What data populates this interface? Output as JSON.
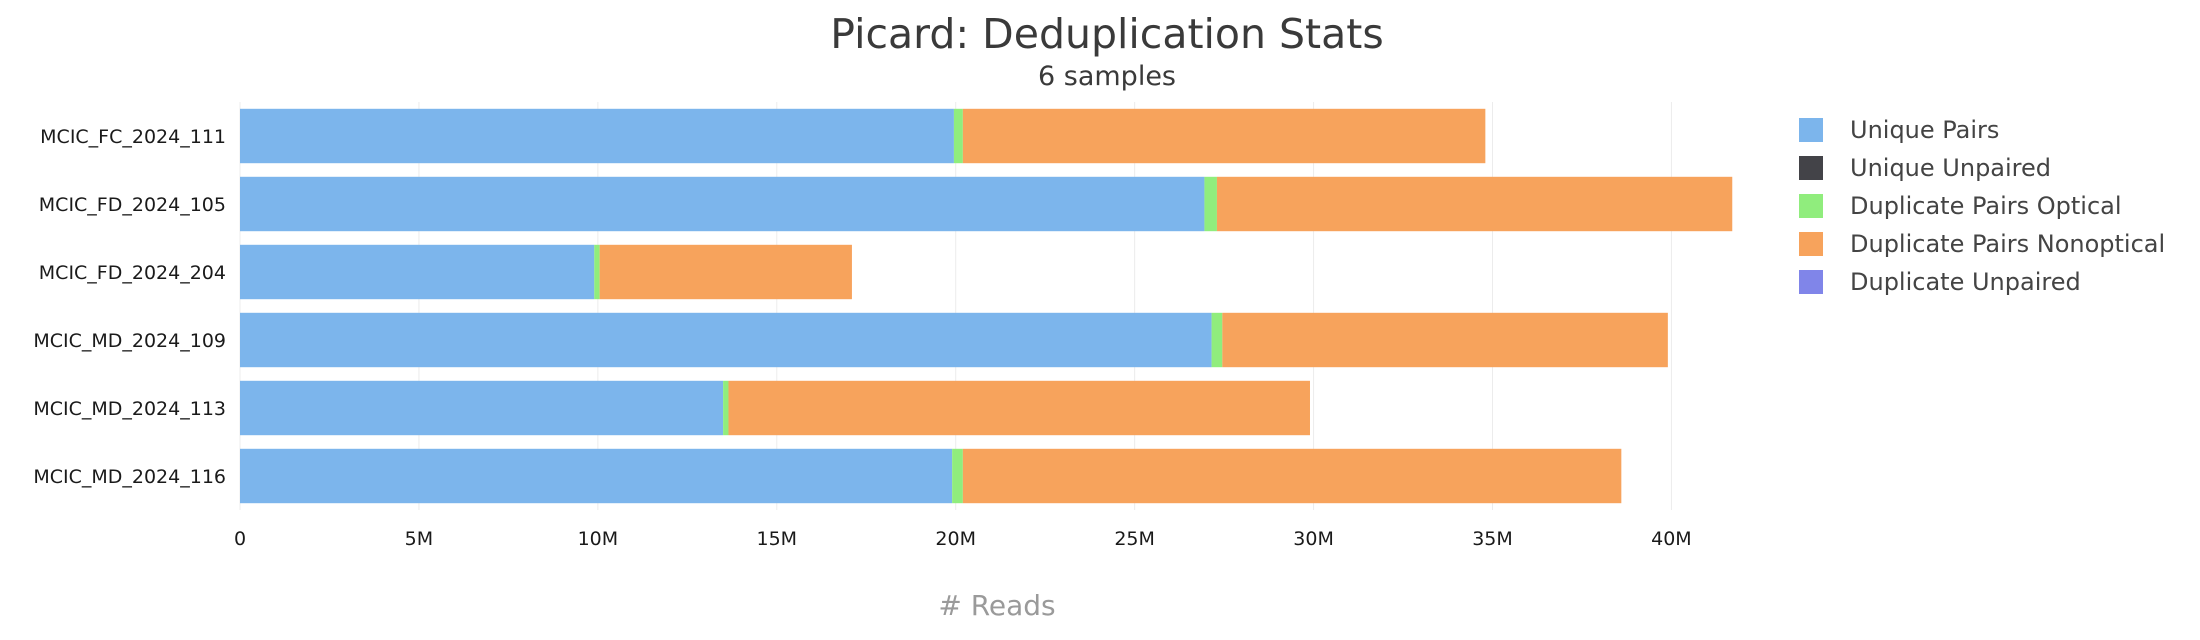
{
  "chart_data": {
    "type": "bar",
    "orientation": "horizontal",
    "stacked": true,
    "title": "Picard: Deduplication Stats",
    "subtitle": "6 samples",
    "xlabel": "# Reads",
    "ylabel": "",
    "xlim": [
      0,
      42000000
    ],
    "xticks": [
      {
        "value": 0,
        "label": "0"
      },
      {
        "value": 5000000,
        "label": "5M"
      },
      {
        "value": 10000000,
        "label": "10M"
      },
      {
        "value": 15000000,
        "label": "15M"
      },
      {
        "value": 20000000,
        "label": "20M"
      },
      {
        "value": 25000000,
        "label": "25M"
      },
      {
        "value": 30000000,
        "label": "30M"
      },
      {
        "value": 35000000,
        "label": "35M"
      },
      {
        "value": 40000000,
        "label": "40M"
      }
    ],
    "grid": true,
    "legend_position": "right",
    "categories": [
      "MCIC_FC_2024_111",
      "MCIC_FD_2024_105",
      "MCIC_FD_2024_204",
      "MCIC_MD_2024_109",
      "MCIC_MD_2024_113",
      "MCIC_MD_2024_116"
    ],
    "series": [
      {
        "name": "Unique Pairs",
        "color": "#7cb5ec",
        "values": [
          19950000,
          26950000,
          9900000,
          27150000,
          13500000,
          19900000
        ]
      },
      {
        "name": "Unique Unpaired",
        "color": "#434348",
        "values": [
          0,
          0,
          0,
          0,
          0,
          0
        ]
      },
      {
        "name": "Duplicate Pairs Optical",
        "color": "#90ed7d",
        "values": [
          250000,
          350000,
          150000,
          300000,
          150000,
          300000
        ]
      },
      {
        "name": "Duplicate Pairs Nonoptical",
        "color": "#f7a35c",
        "values": [
          14600000,
          14400000,
          7050000,
          12450000,
          16250000,
          18400000
        ]
      },
      {
        "name": "Duplicate Unpaired",
        "color": "#8085e9",
        "values": [
          0,
          0,
          0,
          0,
          0,
          0
        ]
      }
    ]
  }
}
